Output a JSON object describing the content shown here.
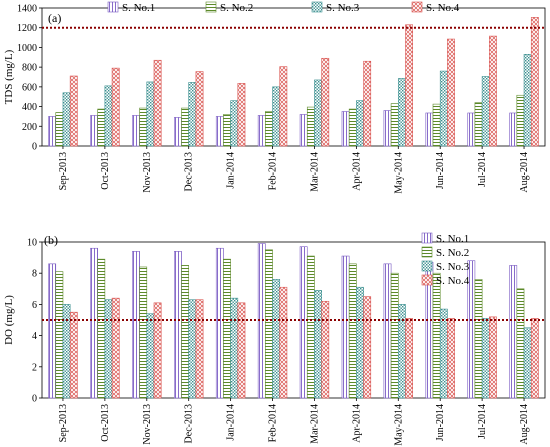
{
  "chart_data": [
    {
      "type": "bar",
      "panel_label": "(a)",
      "ylabel": "TDS  (mg/L)",
      "ylim": [
        0,
        1400
      ],
      "yticks": [
        0,
        200,
        400,
        600,
        800,
        1000,
        1200,
        1400
      ],
      "reference_line": 1200,
      "categories": [
        "Sep-2013",
        "Oct-2013",
        "Nov-2013",
        "Dec-2013",
        "Jan-2014",
        "Feb-2014",
        "Mar-2014",
        "Apr-2014",
        "May-2014",
        "Jun-2014",
        "Jul-2014",
        "Aug-2014"
      ],
      "legend_position": "top",
      "series": [
        {
          "name": "S. No.1",
          "pattern": "vertical-lines",
          "color": "#7b5cc4",
          "values": [
            300,
            310,
            310,
            290,
            300,
            310,
            320,
            350,
            360,
            335,
            335,
            335
          ]
        },
        {
          "name": "S. No.2",
          "pattern": "horizontal-lines",
          "color": "#5d8a2a",
          "values": [
            340,
            375,
            385,
            385,
            320,
            350,
            395,
            375,
            430,
            425,
            440,
            515
          ]
        },
        {
          "name": "S. No.3",
          "pattern": "dots",
          "color": "#3a8f8f",
          "values": [
            540,
            610,
            650,
            645,
            460,
            600,
            670,
            460,
            685,
            760,
            705,
            930
          ]
        },
        {
          "name": "S. No.4",
          "pattern": "crosshatch",
          "color": "#d9534f",
          "values": [
            710,
            790,
            870,
            755,
            635,
            805,
            890,
            860,
            1230,
            1085,
            1115,
            1305
          ]
        }
      ]
    },
    {
      "type": "bar",
      "panel_label": "(b)",
      "ylabel": "DO  (mg/L)",
      "ylim": [
        0,
        10
      ],
      "yticks": [
        0,
        2,
        4,
        6,
        8,
        10
      ],
      "reference_line": 5,
      "categories": [
        "Sep-2013",
        "Oct-2013",
        "Nov-2013",
        "Dec-2013",
        "Jan-2014",
        "Feb-2014",
        "Mar-2014",
        "Apr-2014",
        "May-2014",
        "Jun-2014",
        "Jul-2014",
        "Aug-2014"
      ],
      "legend_position": "top-right",
      "series": [
        {
          "name": "S. No.1",
          "pattern": "vertical-lines",
          "color": "#7b5cc4",
          "values": [
            8.6,
            9.6,
            9.4,
            9.4,
            9.6,
            9.9,
            9.7,
            9.1,
            8.6,
            8.7,
            8.8,
            8.5
          ]
        },
        {
          "name": "S. No.2",
          "pattern": "horizontal-lines",
          "color": "#5d8a2a",
          "values": [
            8.1,
            8.9,
            8.4,
            8.5,
            8.9,
            9.5,
            9.1,
            8.6,
            8.0,
            8.0,
            7.6,
            7.0
          ]
        },
        {
          "name": "S. No.3",
          "pattern": "dots",
          "color": "#3a8f8f",
          "values": [
            6.0,
            6.3,
            5.4,
            6.3,
            6.4,
            7.6,
            6.9,
            7.1,
            6.0,
            5.7,
            5.1,
            4.5
          ]
        },
        {
          "name": "S. No.4",
          "pattern": "crosshatch",
          "color": "#d9534f",
          "values": [
            5.5,
            6.4,
            6.1,
            6.3,
            6.1,
            7.1,
            6.2,
            6.5,
            5.1,
            5.1,
            5.2,
            5.1
          ]
        }
      ]
    }
  ]
}
